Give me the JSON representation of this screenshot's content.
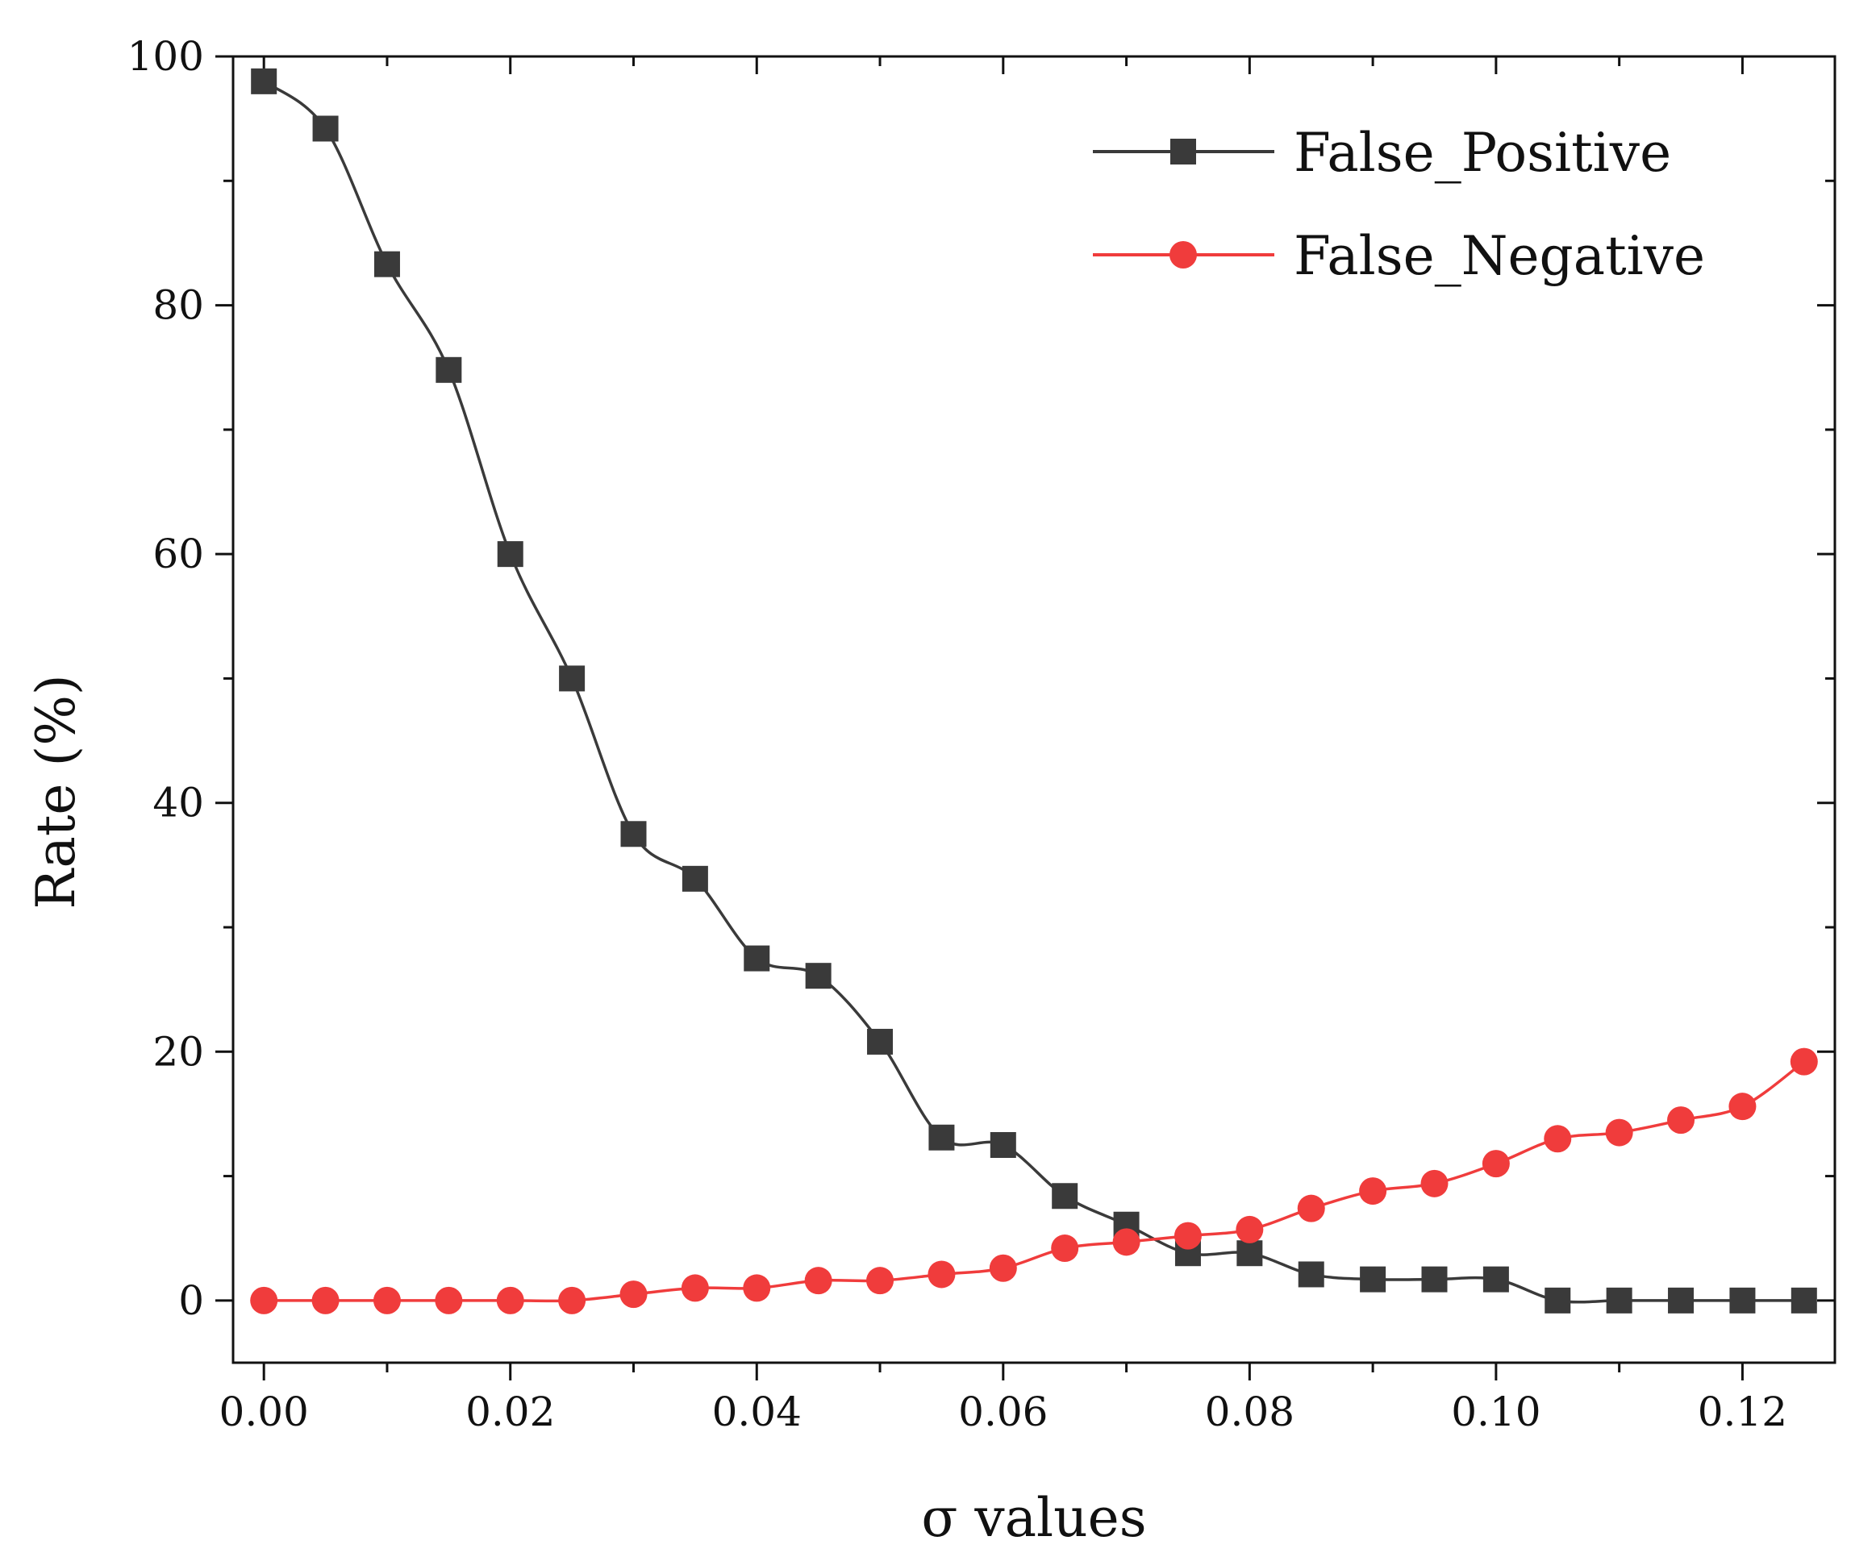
{
  "chart_data": {
    "type": "line",
    "title": "",
    "xlabel": "σ values",
    "ylabel": "Rate (%)",
    "xlim": [
      -0.0025,
      0.1275
    ],
    "ylim": [
      -5,
      100
    ],
    "xticks": [
      0.0,
      0.02,
      0.04,
      0.06,
      0.08,
      0.1,
      0.12
    ],
    "xtick_labels": [
      "0.00",
      "0.02",
      "0.04",
      "0.06",
      "0.08",
      "0.10",
      "0.12"
    ],
    "yticks": [
      0,
      20,
      40,
      60,
      80,
      100
    ],
    "ytick_labels": [
      "0",
      "20",
      "40",
      "60",
      "80",
      "100"
    ],
    "grid": false,
    "legend_position": "top-right",
    "x": [
      0.0,
      0.005,
      0.01,
      0.015,
      0.02,
      0.025,
      0.03,
      0.035,
      0.04,
      0.045,
      0.05,
      0.055,
      0.06,
      0.065,
      0.07,
      0.075,
      0.08,
      0.085,
      0.09,
      0.095,
      0.1,
      0.105,
      0.11,
      0.115,
      0.12,
      0.125
    ],
    "series": [
      {
        "name": "False_Positive",
        "color": "#3a3a3a",
        "marker": "square",
        "values": [
          98.0,
          94.2,
          83.3,
          74.8,
          60.0,
          50.0,
          37.5,
          33.9,
          27.5,
          26.1,
          20.8,
          13.1,
          12.5,
          8.4,
          6.1,
          3.8,
          3.8,
          2.1,
          1.7,
          1.7,
          1.7,
          0.0,
          0.0,
          0.0,
          0.0,
          0.0
        ]
      },
      {
        "name": "False_Negative",
        "color": "#f03c3c",
        "marker": "circle",
        "values": [
          0.0,
          0.0,
          0.0,
          0.0,
          0.0,
          0.0,
          0.5,
          1.0,
          1.0,
          1.6,
          1.6,
          2.1,
          2.6,
          4.2,
          4.7,
          5.2,
          5.7,
          7.4,
          8.8,
          9.4,
          11.0,
          13.0,
          13.5,
          14.5,
          15.6,
          19.2
        ]
      }
    ]
  }
}
